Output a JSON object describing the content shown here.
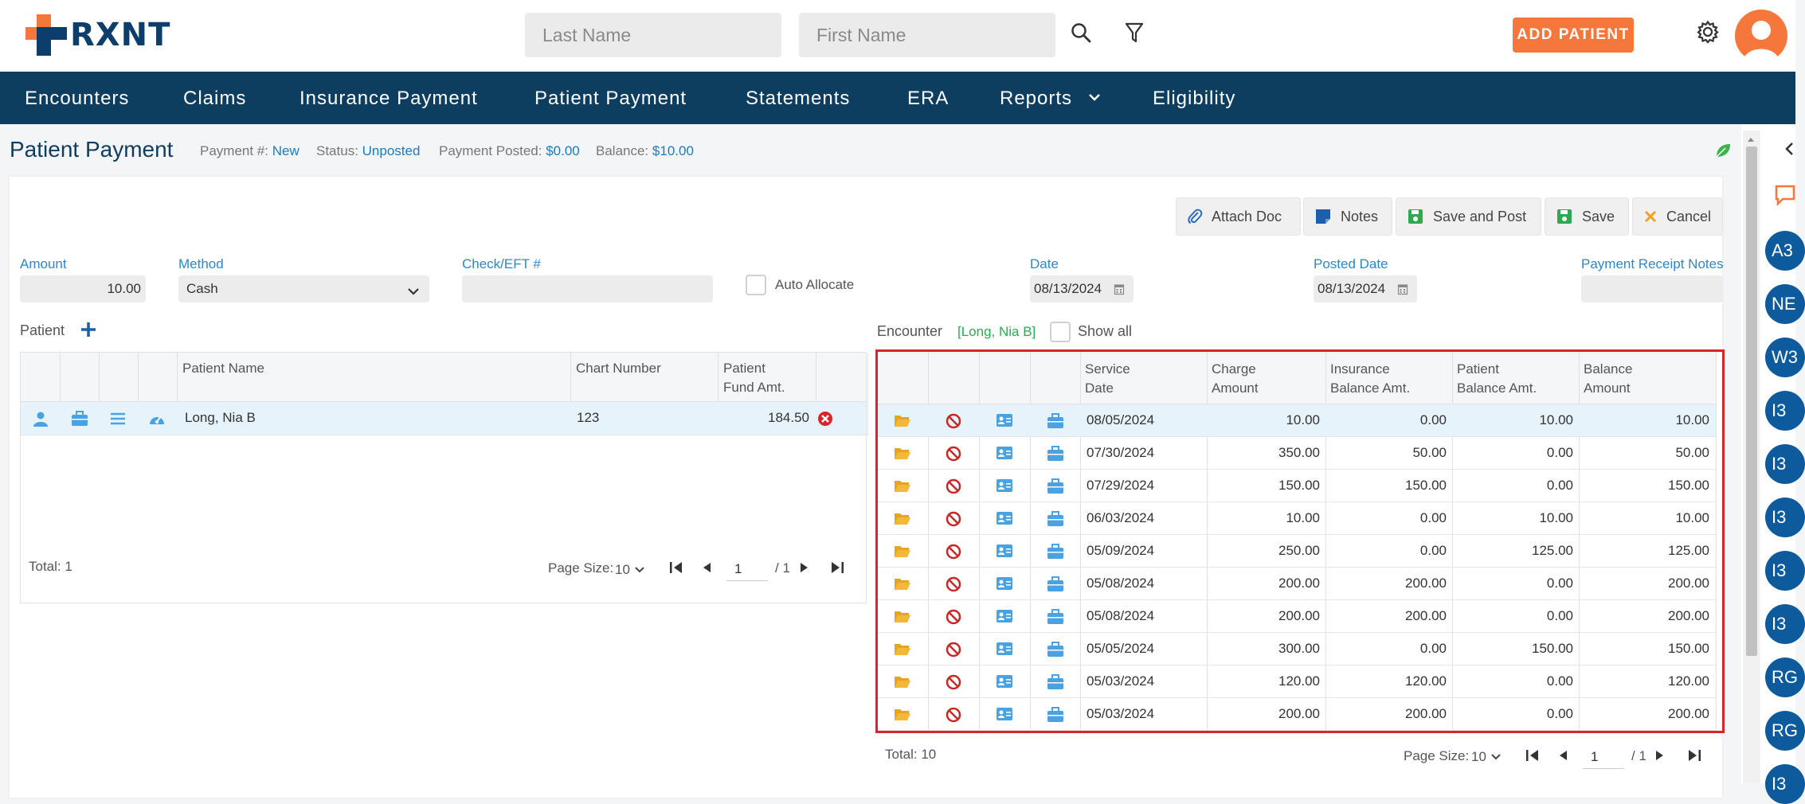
{
  "app": {
    "brand": "RXNT"
  },
  "header": {
    "last_name_placeholder": "Last Name",
    "first_name_placeholder": "First Name",
    "search_icon": "search-icon",
    "filter_icon": "filter-icon",
    "add_patient_label": "ADD PATIENT",
    "settings_icon": "gear-icon"
  },
  "nav": {
    "items": [
      "Encounters",
      "Claims",
      "Insurance Payment",
      "Patient Payment",
      "Statements",
      "ERA",
      "Reports",
      "Eligibility"
    ]
  },
  "page": {
    "title": "Patient Payment",
    "payment_num_label": "Payment #:",
    "payment_num_value": "New",
    "status_label": "Status:",
    "status_value": "Unposted",
    "posted_label": "Payment Posted:",
    "posted_value": "$0.00",
    "balance_label": "Balance:",
    "balance_value": "$10.00"
  },
  "toolbar": {
    "attach_doc": "Attach Doc",
    "notes": "Notes",
    "save_and_post": "Save and Post",
    "save": "Save",
    "cancel": "Cancel"
  },
  "form": {
    "amount_label": "Amount",
    "amount_value": "10.00",
    "method_label": "Method",
    "method_value": "Cash",
    "check_label": "Check/EFT #",
    "check_value": "",
    "auto_allocate_label": "Auto Allocate",
    "date_label": "Date",
    "date_value": "08/13/2024",
    "posted_date_label": "Posted Date",
    "posted_date_value": "08/13/2024",
    "receipt_notes_label": "Payment Receipt Notes"
  },
  "patient_section": {
    "label": "Patient",
    "columns": [
      "Patient Name",
      "Chart Number",
      "Patient",
      "Fund Amt."
    ],
    "rows": [
      {
        "name": "Long, Nia B",
        "chart": "123",
        "fund": "184.50"
      }
    ],
    "total": "Total: 1",
    "page_size_label": "Page Size:",
    "page_size": "10",
    "page": "1",
    "page_of": "/ 1"
  },
  "encounter_section": {
    "label": "Encounter",
    "patient_tag": "[Long, Nia B]",
    "show_all_label": "Show all",
    "columns": {
      "service_date": [
        "Service",
        "Date"
      ],
      "charge": [
        "Charge",
        "Amount"
      ],
      "insurance_bal": [
        "Insurance",
        "Balance Amt."
      ],
      "patient_bal": [
        "Patient",
        "Balance Amt."
      ],
      "balance": [
        "Balance",
        "Amount"
      ]
    },
    "rows": [
      {
        "date": "08/05/2024",
        "charge": "10.00",
        "ins": "0.00",
        "pat": "10.00",
        "bal": "10.00"
      },
      {
        "date": "07/30/2024",
        "charge": "350.00",
        "ins": "50.00",
        "pat": "0.00",
        "bal": "50.00"
      },
      {
        "date": "07/29/2024",
        "charge": "150.00",
        "ins": "150.00",
        "pat": "0.00",
        "bal": "150.00"
      },
      {
        "date": "06/03/2024",
        "charge": "10.00",
        "ins": "0.00",
        "pat": "10.00",
        "bal": "10.00"
      },
      {
        "date": "05/09/2024",
        "charge": "250.00",
        "ins": "0.00",
        "pat": "125.00",
        "bal": "125.00"
      },
      {
        "date": "05/08/2024",
        "charge": "200.00",
        "ins": "200.00",
        "pat": "0.00",
        "bal": "200.00"
      },
      {
        "date": "05/08/2024",
        "charge": "200.00",
        "ins": "200.00",
        "pat": "0.00",
        "bal": "200.00"
      },
      {
        "date": "05/05/2024",
        "charge": "300.00",
        "ins": "0.00",
        "pat": "150.00",
        "bal": "150.00"
      },
      {
        "date": "05/03/2024",
        "charge": "120.00",
        "ins": "120.00",
        "pat": "0.00",
        "bal": "120.00"
      },
      {
        "date": "05/03/2024",
        "charge": "200.00",
        "ins": "200.00",
        "pat": "0.00",
        "bal": "200.00"
      }
    ],
    "total": "Total: 10",
    "page_size_label": "Page Size:",
    "page_size": "10",
    "page": "1",
    "page_of": "/ 1"
  },
  "rail": {
    "badges": [
      "A3",
      "NE",
      "W3",
      "I3",
      "I3",
      "I3",
      "I3",
      "I3",
      "RG",
      "RG",
      "I3"
    ]
  },
  "colors": {
    "brand_navy": "#0d3e5f",
    "accent_orange": "#f5773b",
    "link_blue": "#1a7bbf",
    "highlight_red": "#d9252a"
  }
}
